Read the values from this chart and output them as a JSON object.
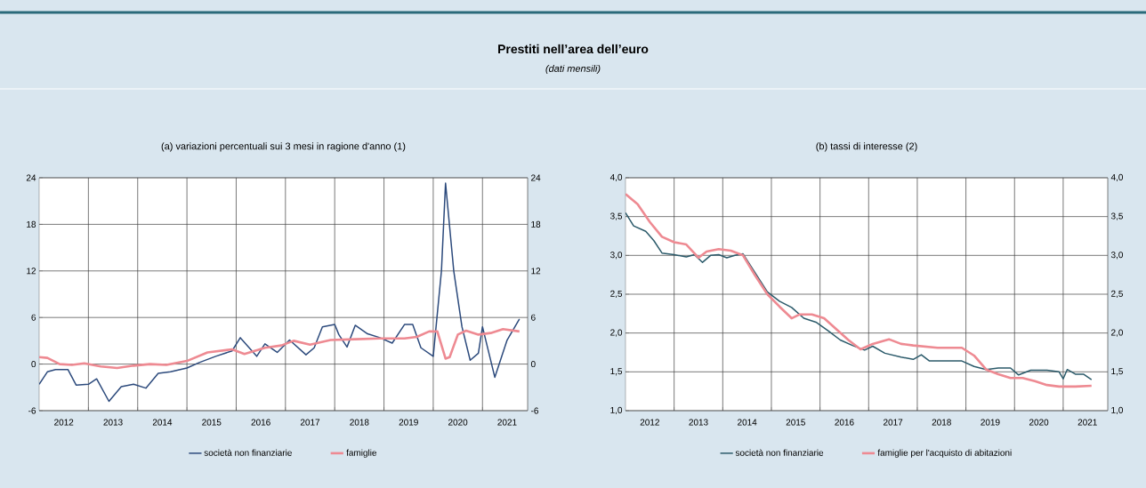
{
  "chart_data": [
    {
      "type": "line",
      "title": "(a) variazioni percentuali sui 3 mesi in ragione d'anno (1)",
      "annotations": [
        "Prestiti nell’area dell’euro",
        "(dati mensili)"
      ],
      "xlim": [
        "2012-01",
        "2021-12"
      ],
      "xticks": [
        {
          "value": "2013-01",
          "label": null
        },
        {
          "value": "2014-01",
          "label": null
        },
        {
          "value": "2015-01",
          "label": null
        },
        {
          "value": "2016-01",
          "label": null
        },
        {
          "value": "2017-01",
          "label": null
        },
        {
          "value": "2018-01",
          "label": null
        },
        {
          "value": "2019-01",
          "label": null
        },
        {
          "value": "2020-01",
          "label": null
        },
        {
          "value": "2021-01",
          "label": null
        },
        {
          "value": "2012-07",
          "label": "2012"
        },
        {
          "value": "2013-07",
          "label": "2013"
        },
        {
          "value": "2014-07",
          "label": "2014"
        },
        {
          "value": "2015-07",
          "label": "2015"
        },
        {
          "value": "2016-07",
          "label": "2016"
        },
        {
          "value": "2017-07",
          "label": "2017"
        },
        {
          "value": "2018-07",
          "label": "2018"
        },
        {
          "value": "2019-07",
          "label": "2019"
        },
        {
          "value": "2020-07",
          "label": "2020"
        },
        {
          "value": "2021-07",
          "label": "2021"
        }
      ],
      "ylim": [
        -6,
        24
      ],
      "yticks": [
        -6,
        0,
        6,
        12,
        18,
        24
      ],
      "y2lim": [
        -6,
        24
      ],
      "y2ticks": [
        -6,
        0,
        6,
        12,
        18,
        24
      ],
      "grid": true,
      "legend": "bottom",
      "marker": "none",
      "line_style": "solid",
      "series": [
        {
          "name": "società non finanziarie",
          "color": "#2c4a7c",
          "x": [
            "2012-01",
            "2012-03",
            "2012-05",
            "2012-08",
            "2012-10",
            "2013-01",
            "2013-03",
            "2013-06",
            "2013-09",
            "2013-12",
            "2014-03",
            "2014-06",
            "2014-09",
            "2015-01",
            "2015-04",
            "2015-08",
            "2015-12",
            "2016-02",
            "2016-06",
            "2016-08",
            "2016-11",
            "2017-02",
            "2017-06",
            "2017-08",
            "2017-10",
            "2018-01",
            "2018-02",
            "2018-04",
            "2018-06",
            "2018-09",
            "2018-12",
            "2019-03",
            "2019-06",
            "2019-08",
            "2019-10",
            "2020-01",
            "2020-03",
            "2020-04",
            "2020-06",
            "2020-08",
            "2020-10",
            "2020-12",
            "2021-01",
            "2021-04",
            "2021-07",
            "2021-10"
          ],
          "values": [
            -2.6,
            -1.0,
            -0.7,
            -0.7,
            -2.7,
            -2.6,
            -1.9,
            -4.8,
            -2.9,
            -2.6,
            -3.1,
            -1.2,
            -1.0,
            -0.5,
            0.2,
            1.0,
            1.7,
            3.4,
            1.0,
            2.6,
            1.5,
            3.1,
            1.2,
            2.1,
            4.8,
            5.1,
            3.8,
            2.2,
            5.0,
            3.9,
            3.4,
            2.7,
            5.1,
            5.1,
            2.1,
            1.0,
            12.0,
            23.3,
            12.0,
            4.8,
            0.5,
            1.4,
            4.8,
            -1.7,
            3.1,
            5.8
          ]
        },
        {
          "name": "famiglie",
          "color": "#ee8a92",
          "x": [
            "2012-01",
            "2012-03",
            "2012-06",
            "2012-09",
            "2012-12",
            "2013-04",
            "2013-08",
            "2013-12",
            "2014-04",
            "2014-08",
            "2015-01",
            "2015-06",
            "2015-12",
            "2016-03",
            "2016-08",
            "2016-12",
            "2017-03",
            "2017-07",
            "2017-12",
            "2018-06",
            "2018-12",
            "2019-06",
            "2019-09",
            "2019-12",
            "2020-02",
            "2020-04",
            "2020-05",
            "2020-07",
            "2020-09",
            "2020-12",
            "2021-03",
            "2021-06",
            "2021-10"
          ],
          "values": [
            0.9,
            0.8,
            0.0,
            -0.1,
            0.1,
            -0.3,
            -0.5,
            -0.2,
            0.0,
            -0.1,
            0.4,
            1.5,
            1.9,
            1.3,
            2.1,
            2.4,
            3.0,
            2.5,
            3.1,
            3.2,
            3.3,
            3.3,
            3.5,
            4.2,
            4.2,
            0.7,
            0.9,
            3.8,
            4.3,
            3.8,
            4.0,
            4.5,
            4.2
          ]
        }
      ]
    },
    {
      "type": "line",
      "title": "(b) tassi di interesse (2)",
      "xlim": [
        "2012-01",
        "2021-12"
      ],
      "xticks": [
        {
          "value": "2013-01",
          "label": null
        },
        {
          "value": "2014-01",
          "label": null
        },
        {
          "value": "2015-01",
          "label": null
        },
        {
          "value": "2016-01",
          "label": null
        },
        {
          "value": "2017-01",
          "label": null
        },
        {
          "value": "2018-01",
          "label": null
        },
        {
          "value": "2019-01",
          "label": null
        },
        {
          "value": "2020-01",
          "label": null
        },
        {
          "value": "2021-01",
          "label": null
        },
        {
          "value": "2012-07",
          "label": "2012"
        },
        {
          "value": "2013-07",
          "label": "2013"
        },
        {
          "value": "2014-07",
          "label": "2014"
        },
        {
          "value": "2015-07",
          "label": "2015"
        },
        {
          "value": "2016-07",
          "label": "2016"
        },
        {
          "value": "2017-07",
          "label": "2017"
        },
        {
          "value": "2018-07",
          "label": "2018"
        },
        {
          "value": "2019-07",
          "label": "2019"
        },
        {
          "value": "2020-07",
          "label": "2020"
        },
        {
          "value": "2021-07",
          "label": "2021"
        }
      ],
      "ylim": [
        1.0,
        4.0
      ],
      "yticks": [
        {
          "value": 1.0,
          "label": "1,0"
        },
        {
          "value": 1.5,
          "label": "1,5"
        },
        {
          "value": 2.0,
          "label": "2,0"
        },
        {
          "value": 2.5,
          "label": "2,5"
        },
        {
          "value": 3.0,
          "label": "3,0"
        },
        {
          "value": 3.5,
          "label": "3,5"
        },
        {
          "value": 4.0,
          "label": "4,0"
        }
      ],
      "y2lim": [
        1.0,
        4.0
      ],
      "y2ticks": [
        {
          "value": 1.0,
          "label": "1,0"
        },
        {
          "value": 1.5,
          "label": "1,5"
        },
        {
          "value": 2.0,
          "label": "2,0"
        },
        {
          "value": 2.5,
          "label": "2,5"
        },
        {
          "value": 3.0,
          "label": "3,0"
        },
        {
          "value": 3.5,
          "label": "3,5"
        },
        {
          "value": 4.0,
          "label": "4,0"
        }
      ],
      "grid": true,
      "legend": "bottom",
      "marker": "none",
      "line_style": "solid",
      "series": [
        {
          "name": "società non finanziarie",
          "color": "#2b5a6a",
          "x": [
            "2012-01",
            "2012-03",
            "2012-06",
            "2012-08",
            "2012-10",
            "2013-01",
            "2013-04",
            "2013-06",
            "2013-08",
            "2013-10",
            "2013-12",
            "2014-02",
            "2014-04",
            "2014-06",
            "2014-09",
            "2014-12",
            "2015-03",
            "2015-06",
            "2015-09",
            "2015-12",
            "2016-03",
            "2016-06",
            "2016-09",
            "2016-12",
            "2017-02",
            "2017-05",
            "2017-09",
            "2017-12",
            "2018-02",
            "2018-04",
            "2018-08",
            "2018-12",
            "2019-03",
            "2019-06",
            "2019-09",
            "2019-12",
            "2020-02",
            "2020-05",
            "2020-09",
            "2020-12",
            "2021-01",
            "2021-02",
            "2021-04",
            "2021-06",
            "2021-08"
          ],
          "values": [
            3.55,
            3.38,
            3.31,
            3.19,
            3.03,
            3.01,
            2.98,
            3.01,
            2.91,
            3.0,
            3.01,
            2.97,
            3.0,
            3.02,
            null,
            2.53,
            2.41,
            2.33,
            2.19,
            2.14,
            2.03,
            1.91,
            1.84,
            1.78,
            1.83,
            1.74,
            1.69,
            1.66,
            1.72,
            1.64,
            1.64,
            1.64,
            1.57,
            1.53,
            1.55,
            1.55,
            1.46,
            1.52,
            1.52,
            1.5,
            1.41,
            1.53,
            1.47,
            1.47,
            1.4
          ]
        },
        {
          "name": "famiglie per l'acquisto di abitazioni",
          "color": "#ee8a92",
          "x": [
            "2012-01",
            "2012-04",
            "2012-07",
            "2012-10",
            "2013-01",
            "2013-04",
            "2013-07",
            "2013-09",
            "2013-12",
            "2014-03",
            "2014-06",
            "2014-09",
            "2014-12",
            "2015-03",
            "2015-06",
            "2015-08",
            "2015-11",
            "2016-02",
            "2016-05",
            "2016-08",
            "2016-11",
            "2017-02",
            "2017-06",
            "2017-09",
            "2017-12",
            "2018-06",
            "2018-12",
            "2019-03",
            "2019-06",
            "2019-09",
            "2019-12",
            "2020-03",
            "2020-06",
            "2020-09",
            "2020-12",
            "2021-04",
            "2021-08"
          ],
          "values": [
            3.79,
            3.66,
            3.43,
            3.24,
            3.17,
            3.14,
            2.97,
            3.05,
            3.08,
            3.06,
            3.0,
            2.74,
            2.5,
            2.34,
            2.19,
            2.24,
            2.24,
            2.19,
            2.05,
            1.91,
            1.79,
            1.86,
            1.92,
            1.86,
            1.84,
            1.81,
            1.81,
            1.71,
            1.53,
            1.47,
            1.42,
            1.42,
            1.38,
            1.33,
            1.31,
            1.31,
            1.32
          ]
        }
      ]
    }
  ]
}
